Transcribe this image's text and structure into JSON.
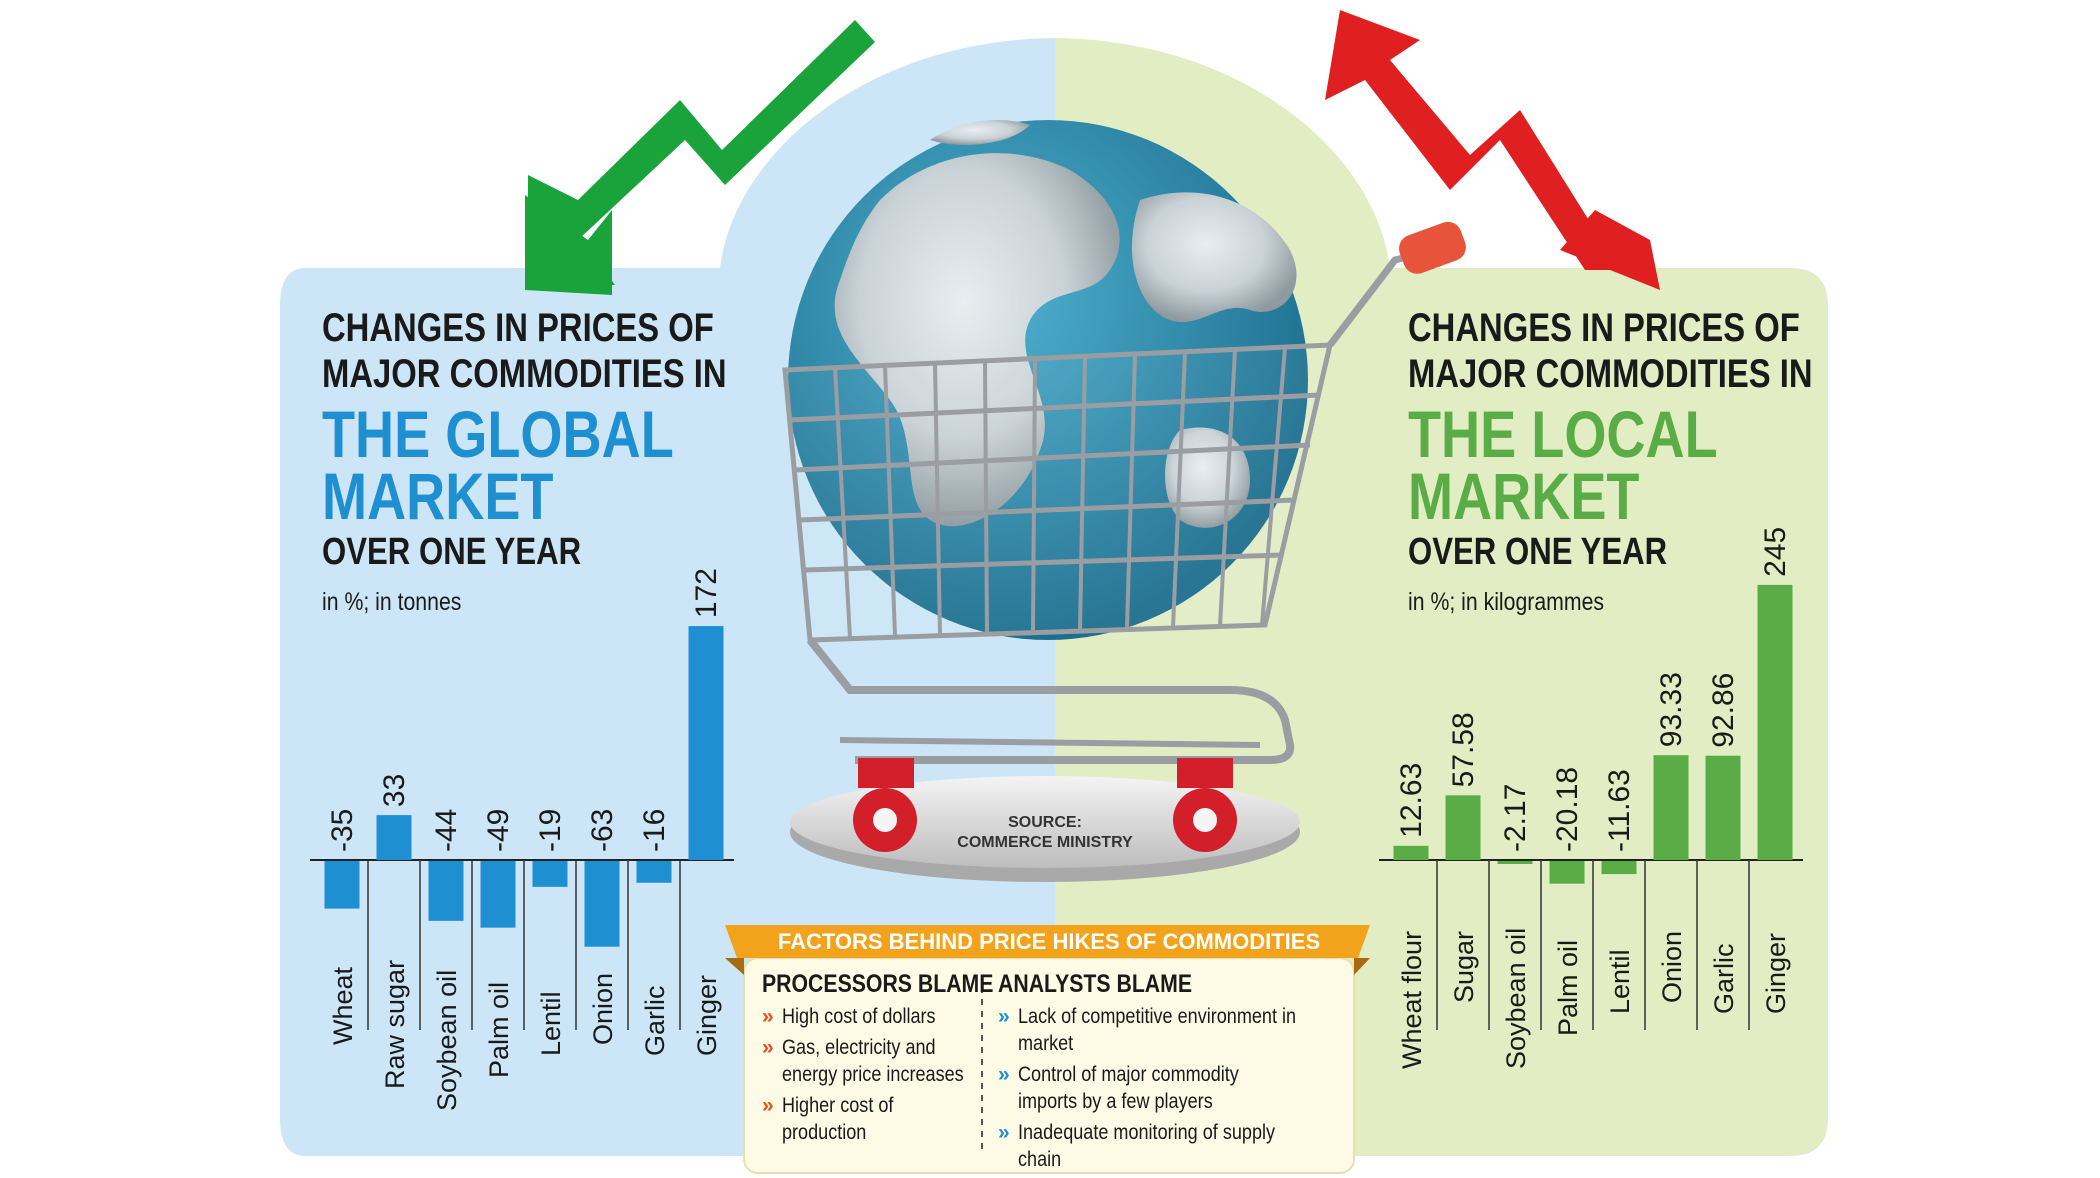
{
  "colors": {
    "global_bg": "#cce6f7",
    "local_bg": "#e2edc4",
    "global_bar": "#1e8fd0",
    "local_bar": "#5aad46",
    "global_accent": "#1e8fd0",
    "local_accent": "#5aad46",
    "down_arrow": "#1aa33a",
    "up_arrow": "#e02020",
    "banner": "#f3a21c"
  },
  "source": {
    "label": "SOURCE:",
    "name": "COMMERCE MINISTRY"
  },
  "global_panel": {
    "title_line1": "CHANGES IN PRICES OF",
    "title_line2": "MAJOR COMMODITIES IN",
    "highlight_line1": "THE GLOBAL",
    "highlight_line2": "MARKET",
    "period": "OVER ONE YEAR",
    "unit": "in %; in tonnes"
  },
  "local_panel": {
    "title_line1": "CHANGES IN PRICES OF",
    "title_line2": "MAJOR COMMODITIES IN",
    "highlight_line1": "THE LOCAL",
    "highlight_line2": "MARKET",
    "period": "OVER ONE YEAR",
    "unit": "in %; in kilogrammes"
  },
  "factors": {
    "banner": "FACTORS BEHIND PRICE HIKES OF COMMODITIES",
    "processors": {
      "heading": "PROCESSORS BLAME",
      "items": [
        "High cost of dollars",
        "Gas, electricity and energy price increases",
        "Higher cost of production"
      ]
    },
    "analysts": {
      "heading": "ANALYSTS BLAME",
      "items": [
        "Lack of competitive environment in market",
        "Control of major commodity imports by a few players",
        "Inadequate monitoring of supply chain"
      ]
    }
  },
  "chart_data": [
    {
      "type": "bar",
      "title": "CHANGES IN PRICES OF MAJOR COMMODITIES IN THE GLOBAL MARKET OVER ONE YEAR",
      "ylabel": "in %; in tonnes",
      "categories": [
        "Wheat",
        "Raw sugar",
        "Soybean oil",
        "Palm oil",
        "Lentil",
        "Onion",
        "Garlic",
        "Ginger"
      ],
      "values": [
        -35,
        33,
        -44,
        -49,
        -19,
        -63,
        -16,
        172
      ],
      "value_labels": [
        "-35",
        "33",
        "-44",
        "-49",
        "-19",
        "-63",
        "-16",
        "172"
      ],
      "color": "#1e8fd0"
    },
    {
      "type": "bar",
      "title": "CHANGES IN PRICES OF MAJOR COMMODITIES IN THE LOCAL MARKET OVER ONE YEAR",
      "ylabel": "in %; in kilogrammes",
      "categories": [
        "Wheat flour",
        "Sugar",
        "Soybean oil",
        "Palm oil",
        "Lentil",
        "Onion",
        "Garlic",
        "Ginger"
      ],
      "values": [
        12.63,
        57.58,
        -2.17,
        -20.18,
        -11.63,
        93.33,
        92.86,
        245
      ],
      "value_labels": [
        "12.63",
        "57.58",
        "-2.17",
        "-20.18",
        "-11.63",
        "93.33",
        "92.86",
        "245"
      ],
      "color": "#5aad46"
    }
  ]
}
